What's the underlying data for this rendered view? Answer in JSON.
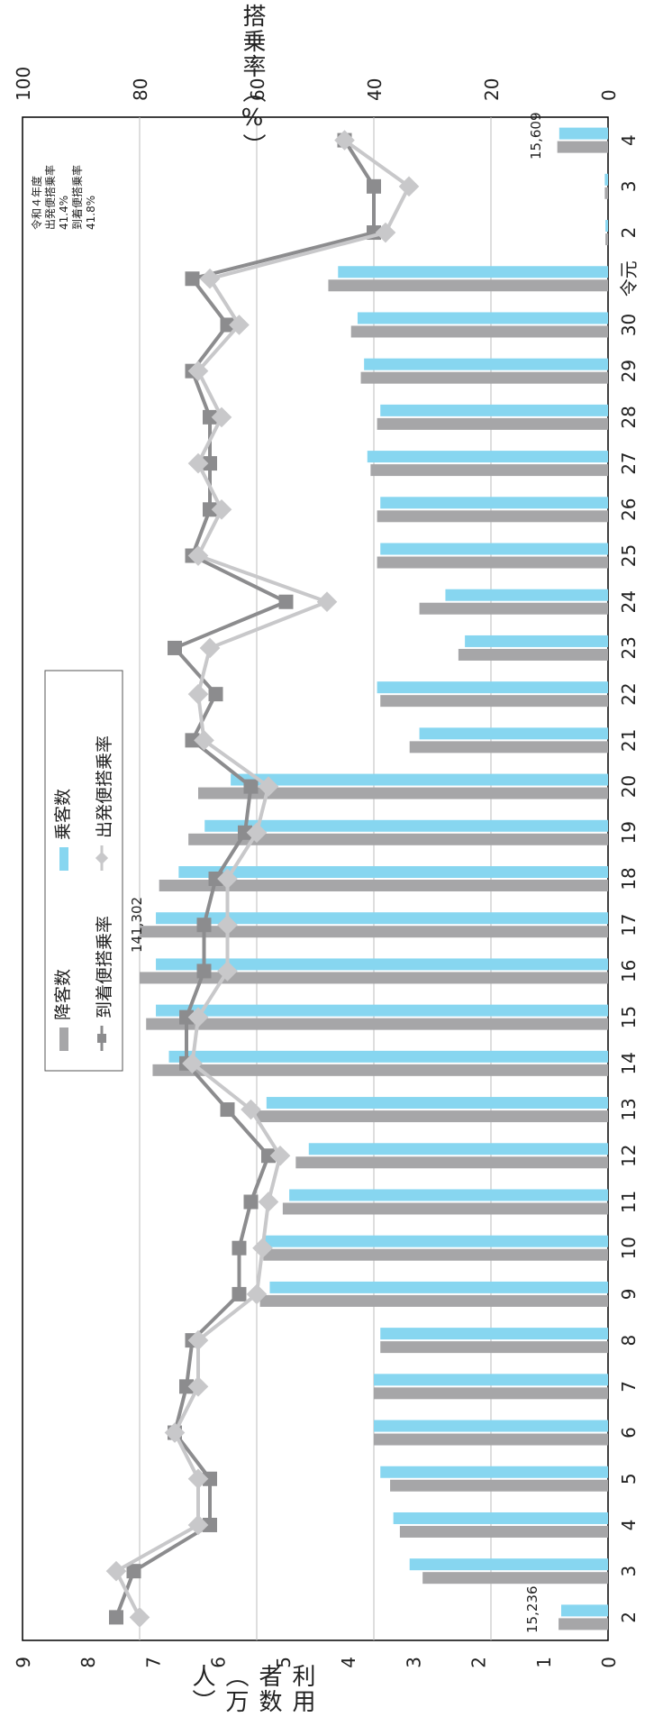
{
  "chart_data": {
    "type": "bar+line",
    "orientation": "rotated-90-clockwise",
    "categories": [
      "2",
      "3",
      "4",
      "5",
      "6",
      "7",
      "8",
      "9",
      "10",
      "11",
      "12",
      "13",
      "14",
      "15",
      "16",
      "17",
      "18",
      "19",
      "20",
      "21",
      "22",
      "23",
      "24",
      "25",
      "26",
      "27",
      "28",
      "29",
      "30",
      "令元",
      "2",
      "3",
      "4"
    ],
    "left_axis_label": "利用者数（万人）",
    "right_axis_label": "搭乗率（%）",
    "left_axis_ticks": [
      "0",
      "1",
      "2",
      "3",
      "4",
      "5",
      "6",
      "7",
      "8",
      "9"
    ],
    "right_axis_ticks": [
      "0",
      "20",
      "40",
      "60",
      "80",
      "100"
    ],
    "left_ylim": [
      0,
      9
    ],
    "right_ylim": [
      0,
      100
    ],
    "bar_series": [
      {
        "name": "降客数",
        "color": "#a6a6a8",
        "values": [
          0.76,
          2.85,
          3.2,
          3.35,
          3.6,
          3.6,
          3.5,
          5.35,
          5.3,
          5.0,
          4.8,
          5.4,
          7.0,
          7.1,
          7.2,
          7.2,
          6.9,
          6.45,
          6.3,
          3.05,
          3.5,
          2.3,
          2.9,
          3.55,
          3.55,
          3.65,
          3.55,
          3.8,
          3.95,
          4.3,
          0.04,
          0.05,
          0.78
        ]
      },
      {
        "name": "乗客数",
        "color": "#87d6f0",
        "values": [
          0.72,
          3.05,
          3.3,
          3.5,
          3.6,
          3.6,
          3.5,
          5.2,
          5.3,
          4.9,
          4.6,
          5.25,
          6.75,
          6.95,
          6.95,
          6.95,
          6.6,
          6.2,
          5.8,
          2.9,
          3.55,
          2.2,
          2.5,
          3.5,
          3.5,
          3.7,
          3.5,
          3.75,
          3.85,
          4.15,
          0.04,
          0.05,
          0.75
        ]
      }
    ],
    "line_series": [
      {
        "name": "到着便搭乗率",
        "color": "#8c8c8e",
        "marker": "square",
        "values": [
          84,
          81,
          68,
          68,
          74,
          72,
          71,
          63,
          63,
          61,
          58,
          65,
          72,
          72,
          69,
          69,
          67,
          62,
          61,
          71,
          67,
          74,
          55,
          71,
          68,
          68,
          68,
          71,
          65,
          71,
          40,
          40,
          45
        ]
      },
      {
        "name": "出発便搭乗率",
        "color": "#c8c8ca",
        "marker": "diamond",
        "values": [
          80,
          84,
          70,
          70,
          74,
          70,
          70,
          60,
          59,
          58,
          56,
          61,
          71,
          70,
          65,
          65,
          65,
          60,
          58,
          69,
          70,
          68,
          48,
          70,
          66,
          70,
          66,
          70,
          63,
          68,
          38,
          34,
          45
        ]
      }
    ],
    "annotations": [
      "141,302",
      "15,236",
      "15,609",
      "令和４年度",
      "出発便搭乗率",
      "41.4%",
      "到着便搭乗率",
      "41.8%"
    ],
    "legend_position": "top-left",
    "grid": true
  }
}
